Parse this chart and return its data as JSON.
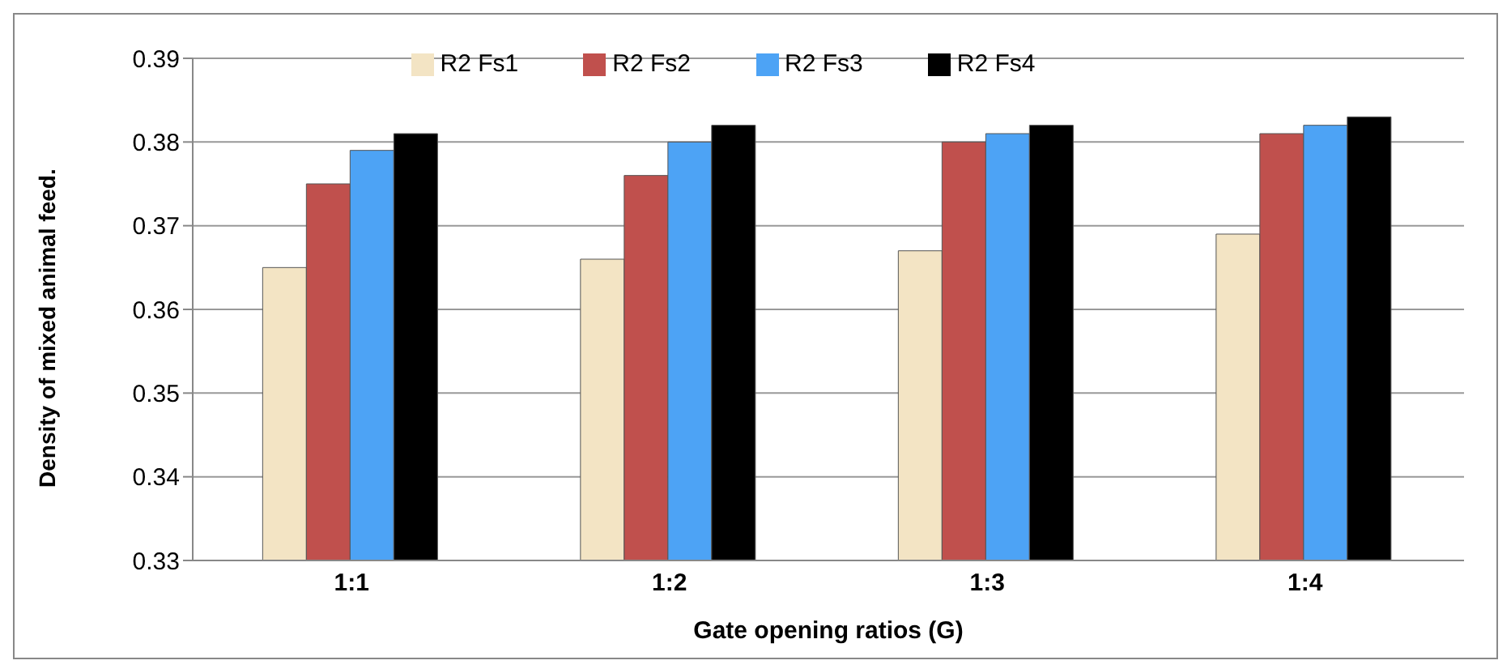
{
  "chart_data": {
    "type": "bar",
    "xlabel": "Gate opening ratios (G)",
    "ylabel": "Density of mixed animal feed.",
    "categories": [
      "1:1",
      "1:2",
      "1:3",
      "1:4"
    ],
    "series": [
      {
        "name": "R2 Fs1",
        "color": "#f3e4c4",
        "values": [
          0.365,
          0.366,
          0.367,
          0.369
        ]
      },
      {
        "name": "R2 Fs2",
        "color": "#c0504d",
        "values": [
          0.375,
          0.376,
          0.38,
          0.381
        ]
      },
      {
        "name": "R2 Fs3",
        "color": "#4da3f5",
        "values": [
          0.379,
          0.38,
          0.381,
          0.382
        ]
      },
      {
        "name": "R2 Fs4",
        "color": "#000000",
        "values": [
          0.381,
          0.382,
          0.382,
          0.383
        ]
      }
    ],
    "ylim": [
      0.33,
      0.39
    ],
    "yticks": [
      0.33,
      0.34,
      0.35,
      0.36,
      0.37,
      0.38,
      0.39
    ],
    "grid": "y",
    "legend": "top"
  }
}
